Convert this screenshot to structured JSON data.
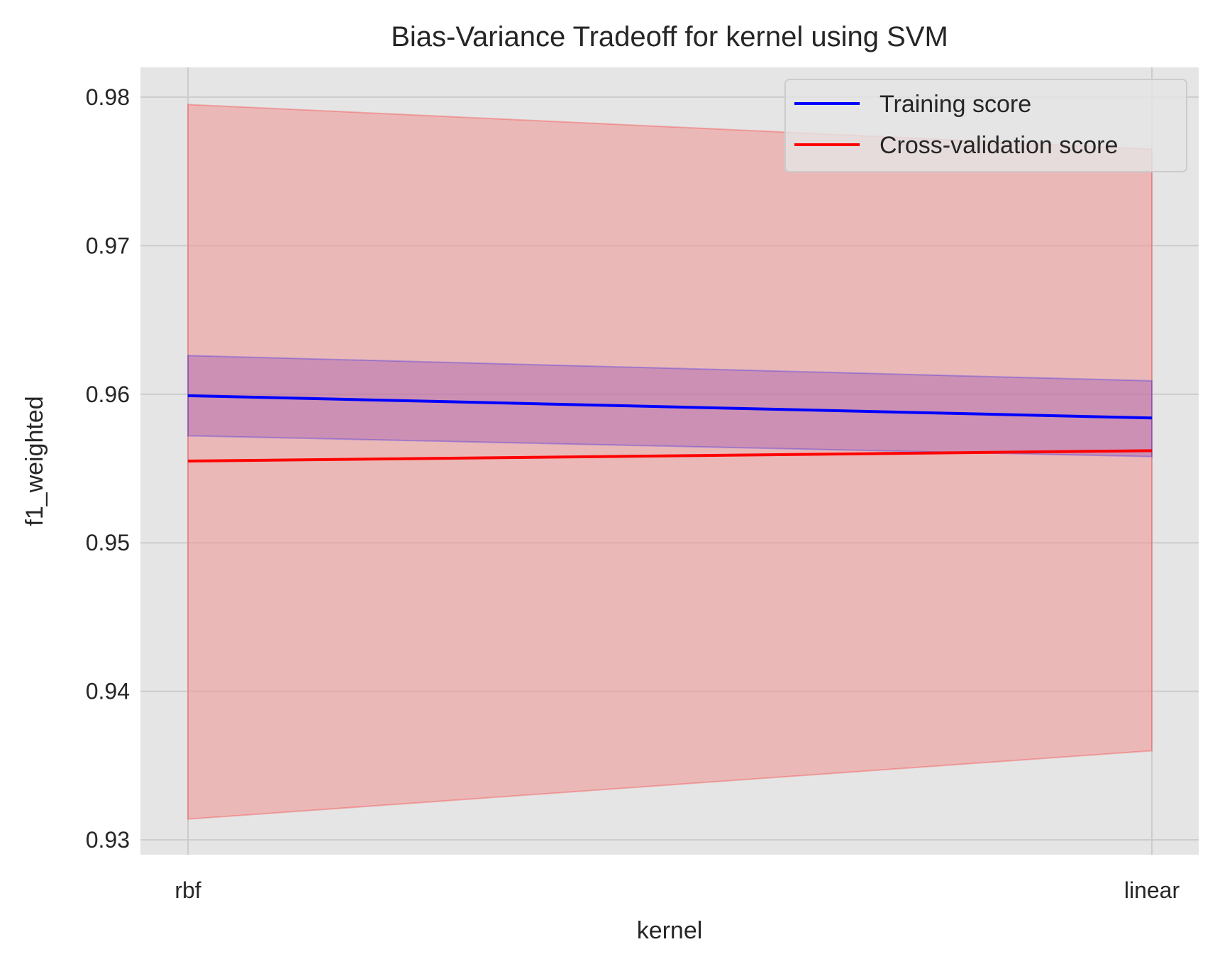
{
  "chart_data": {
    "type": "line",
    "title": "Bias-Variance Tradeoff for kernel using SVM",
    "xlabel": "kernel",
    "ylabel": "f1_weighted",
    "categories": [
      "rbf",
      "linear"
    ],
    "ylim": [
      0.929,
      0.982
    ],
    "yticks": [
      0.93,
      0.94,
      0.95,
      0.96,
      0.97,
      0.98
    ],
    "ytick_labels": [
      "0.93",
      "0.94",
      "0.95",
      "0.96",
      "0.97",
      "0.98"
    ],
    "grid": true,
    "legend_position": "top-right",
    "series": [
      {
        "name": "Training score",
        "color": "#0000ff",
        "band_color": "#9b59b6",
        "values": [
          0.9599,
          0.9584
        ],
        "lower": [
          0.9572,
          0.9558
        ],
        "upper": [
          0.9626,
          0.9609
        ]
      },
      {
        "name": "Cross-validation score",
        "color": "#ff0000",
        "band_color": "#e88a8a",
        "values": [
          0.9555,
          0.9562
        ],
        "lower": [
          0.9314,
          0.936
        ],
        "upper": [
          0.9795,
          0.9765
        ]
      }
    ]
  }
}
